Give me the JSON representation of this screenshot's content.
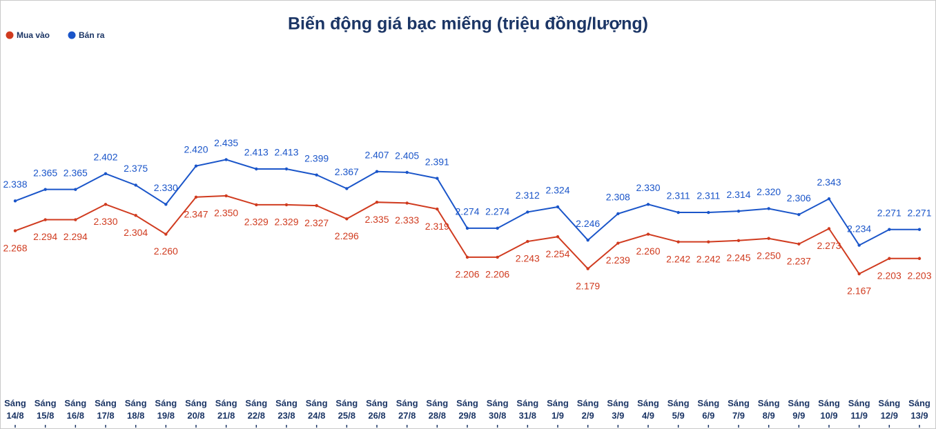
{
  "chart_data": {
    "type": "line",
    "title": "Biến động giá bạc miếng (triệu đồng/lượng)",
    "categories": [
      "Sáng 14/8",
      "Sáng 15/8",
      "Sáng 16/8",
      "Sáng 17/8",
      "Sáng 18/8",
      "Sáng 19/8",
      "Sáng 20/8",
      "Sáng 21/8",
      "Sáng 22/8",
      "Sáng 23/8",
      "Sáng 24/8",
      "Sáng 25/8",
      "Sáng 26/8",
      "Sáng 27/8",
      "Sáng 28/8",
      "Sáng 29/8",
      "Sáng 30/8",
      "Sáng 31/8",
      "Sáng 1/9",
      "Sáng 2/9",
      "Sáng 3/9",
      "Sáng 4/9",
      "Sáng 5/9",
      "Sáng 6/9",
      "Sáng 7/9",
      "Sáng 8/9",
      "Sáng 9/9",
      "Sáng 10/9",
      "Sáng 11/9",
      "Sáng 12/9",
      "Sáng 13/9"
    ],
    "series": [
      {
        "name": "Mua vào",
        "color": "#d03b1f",
        "values": [
          2.268,
          2.294,
          2.294,
          2.33,
          2.304,
          2.26,
          2.347,
          2.35,
          2.329,
          2.329,
          2.327,
          2.296,
          2.335,
          2.333,
          2.319,
          2.206,
          2.206,
          2.243,
          2.254,
          2.179,
          2.239,
          2.26,
          2.242,
          2.242,
          2.245,
          2.25,
          2.237,
          2.273,
          2.167,
          2.203,
          2.203
        ],
        "value_labels": [
          "2.268",
          "2.294",
          "2.294",
          "2.330",
          "2.304",
          "2.260",
          "2.347",
          "2.350",
          "2.329",
          "2.329",
          "2.327",
          "2.296",
          "2.335",
          "2.333",
          "2.319",
          "2.206",
          "2.206",
          "2.243",
          "2.254",
          "2.179",
          "2.239",
          "2.260",
          "2.242",
          "2.242",
          "2.245",
          "2.250",
          "2.237",
          "2.273",
          "2.167",
          "2.203",
          "2.203"
        ]
      },
      {
        "name": "Bán ra",
        "color": "#1a55c9",
        "values": [
          2.338,
          2.365,
          2.365,
          2.402,
          2.375,
          2.33,
          2.42,
          2.435,
          2.413,
          2.413,
          2.399,
          2.367,
          2.407,
          2.405,
          2.391,
          2.274,
          2.274,
          2.312,
          2.324,
          2.246,
          2.308,
          2.33,
          2.311,
          2.311,
          2.314,
          2.32,
          2.306,
          2.343,
          2.234,
          2.271,
          2.271
        ],
        "value_labels": [
          "2.338",
          "2.365",
          "2.365",
          "2.402",
          "2.375",
          "2.330",
          "2.420",
          "2.435",
          "2.413",
          "2.413",
          "2.399",
          "2.367",
          "2.407",
          "2.405",
          "2.391",
          "2.274",
          "2.274",
          "2.312",
          "2.324",
          "2.246",
          "2.308",
          "2.330",
          "2.311",
          "2.311",
          "2.314",
          "2.320",
          "2.306",
          "2.343",
          "2.234",
          "2.271",
          "2.271"
        ]
      }
    ],
    "ylim": [
      1.9,
      2.68
    ],
    "legend": "top-left"
  }
}
